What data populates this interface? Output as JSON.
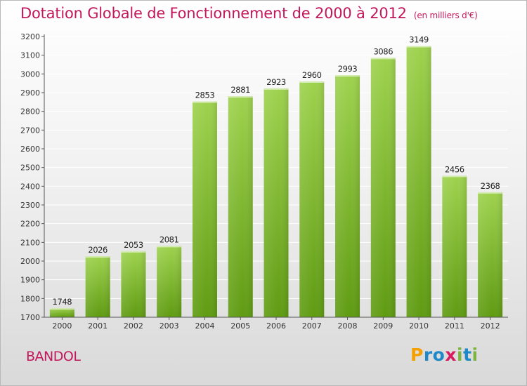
{
  "header": {
    "title": "Dotation Globale de Fonctionnement de 2000 à 2012",
    "subtitle": "(en milliers d'€)"
  },
  "footer": {
    "city": "BANDOL",
    "logo_letters": [
      {
        "char": "P",
        "color": "#f4a000"
      },
      {
        "char": "r",
        "color": "#1e88c8"
      },
      {
        "char": "o",
        "color": "#1e88c8"
      },
      {
        "char": "x",
        "color": "#d81b60"
      },
      {
        "char": "i",
        "color": "#7cb342"
      },
      {
        "char": "t",
        "color": "#1e88c8"
      },
      {
        "char": "i",
        "color": "#7cb342"
      }
    ]
  },
  "chart_data": {
    "type": "bar",
    "categories": [
      "2000",
      "2001",
      "2002",
      "2003",
      "2004",
      "2005",
      "2006",
      "2007",
      "2008",
      "2009",
      "2010",
      "2011",
      "2012"
    ],
    "values": [
      1748,
      2026,
      2053,
      2081,
      2853,
      2881,
      2923,
      2960,
      2993,
      3086,
      3149,
      2456,
      2368
    ],
    "ylim": [
      1700,
      3200
    ],
    "yticks": [
      1700,
      1800,
      1900,
      2000,
      2100,
      2200,
      2300,
      2400,
      2500,
      2600,
      2700,
      2800,
      2900,
      3000,
      3100,
      3200
    ],
    "grid": true,
    "colors": {
      "bar_top": "#9ed24e",
      "bar_bottom": "#5f9b12",
      "grid": "#ffffff",
      "axis": "#555555"
    }
  }
}
